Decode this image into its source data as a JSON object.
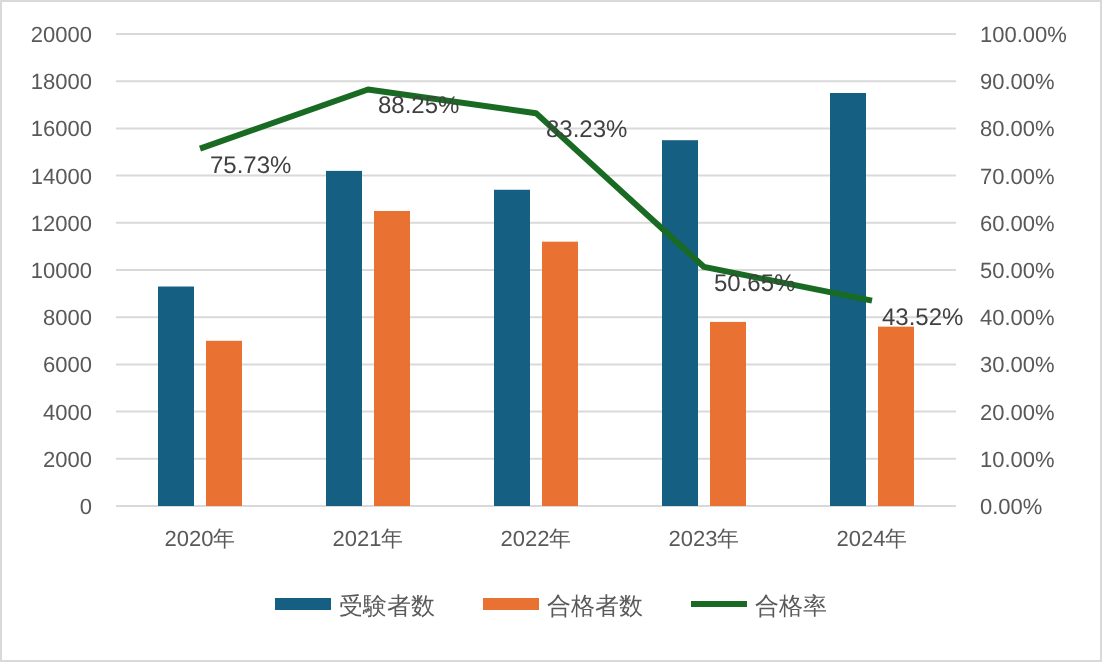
{
  "chart_data": {
    "type": "bar",
    "categories": [
      "2020年",
      "2021年",
      "2022年",
      "2023年",
      "2024年"
    ],
    "series": [
      {
        "name": "受験者数",
        "color": "#156082",
        "values": [
          9300,
          14200,
          13400,
          15500,
          17500
        ]
      },
      {
        "name": "合格者数",
        "color": "#e97132",
        "values": [
          7000,
          12500,
          11200,
          7800,
          7600
        ]
      },
      {
        "name": "合格率",
        "type": "line",
        "axis": "y2",
        "color": "#196b24",
        "values": [
          75.73,
          88.25,
          83.23,
          50.65,
          43.52
        ],
        "value_labels": [
          "75.73%",
          "88.25%",
          "83.23%",
          "50.65%",
          "43.52%"
        ]
      }
    ],
    "ylim": [
      0,
      20000
    ],
    "yticks": [
      0,
      2000,
      4000,
      6000,
      8000,
      10000,
      12000,
      14000,
      16000,
      18000,
      20000
    ],
    "y2lim": [
      0,
      100
    ],
    "y2ticks": [
      {
        "value": 0,
        "label": "0.00%"
      },
      {
        "value": 10,
        "label": "10.00%"
      },
      {
        "value": 20,
        "label": "20.00%"
      },
      {
        "value": 30,
        "label": "30.00%"
      },
      {
        "value": 40,
        "label": "40.00%"
      },
      {
        "value": 50,
        "label": "50.00%"
      },
      {
        "value": 60,
        "label": "60.00%"
      },
      {
        "value": 70,
        "label": "70.00%"
      },
      {
        "value": 80,
        "label": "80.00%"
      },
      {
        "value": 90,
        "label": "90.00%"
      },
      {
        "value": 100,
        "label": "100.00%"
      }
    ],
    "grid": "y",
    "legend": "bottom",
    "marker": "none",
    "line_style": "solid"
  }
}
